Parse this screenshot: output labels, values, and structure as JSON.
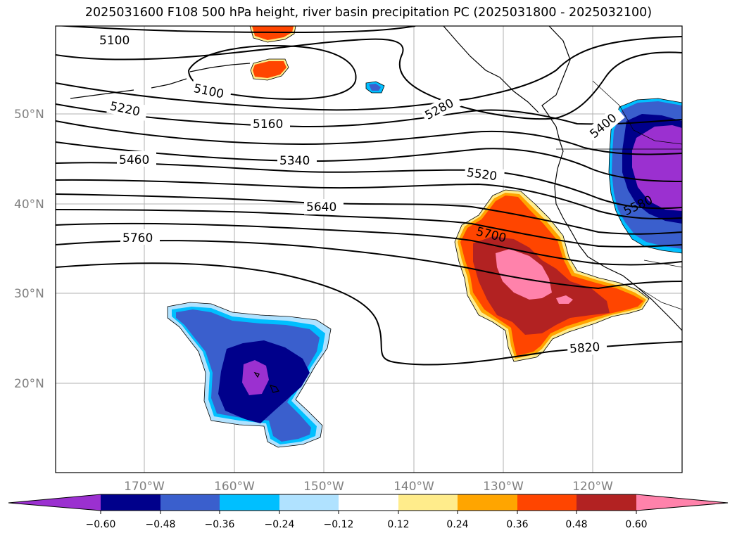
{
  "title": "2025031600 F108 500 hPa height, river basin precipitation PC (2025031800 - 2025032100)",
  "map": {
    "lat_labels": [
      "50°N",
      "40°N",
      "30°N",
      "20°N"
    ],
    "lon_labels": [
      "170°W",
      "160°W",
      "150°W",
      "140°W",
      "130°W",
      "120°W"
    ],
    "contour_labels": [
      "5100",
      "5100",
      "5220",
      "5160",
      "5280",
      "5400",
      "5460",
      "5340",
      "5520",
      "5580",
      "5640",
      "5700",
      "5760",
      "5820"
    ]
  },
  "colorbar": {
    "colors": [
      "#9b30d0",
      "#00008b",
      "#3a5fcd",
      "#00bfff",
      "#b0e2ff",
      "#ffffff",
      "#ffec8b",
      "#ffa500",
      "#ff4500",
      "#b22222",
      "#ff82ab"
    ],
    "ticks": [
      "−0.60",
      "−0.48",
      "−0.36",
      "−0.24",
      "−0.12",
      "0.12",
      "0.24",
      "0.36",
      "0.48",
      "0.60"
    ]
  }
}
